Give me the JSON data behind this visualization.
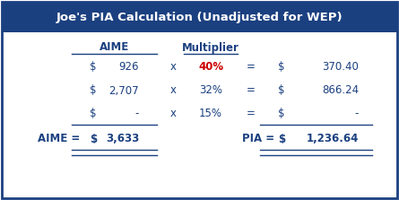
{
  "title": "Joe's PIA Calculation (Unadjusted for WEP)",
  "title_bg": "#1b4080",
  "title_color": "#ffffff",
  "border_color": "#1b4080",
  "bg_color": "#ffffff",
  "header_aime": "AIME",
  "header_multiplier": "Multiplier",
  "rows": [
    {
      "aime_dollar": "$",
      "aime_val": "926",
      "x_sym": "x",
      "multiplier": "40%",
      "mult_color": "#cc0000",
      "eq": "=",
      "res_dollar": "$",
      "res_val": "370.40"
    },
    {
      "aime_dollar": "$",
      "aime_val": "2,707",
      "x_sym": "x",
      "multiplier": "32%",
      "mult_color": "#1b4080",
      "eq": "=",
      "res_dollar": "$",
      "res_val": "866.24"
    },
    {
      "aime_dollar": "$",
      "aime_val": "-",
      "x_sym": "x",
      "multiplier": "15%",
      "mult_color": "#1b4080",
      "eq": "=",
      "res_dollar": "$",
      "res_val": "-"
    }
  ],
  "total_label": "AIME =",
  "total_aime_dollar": "$",
  "total_aime_val": "3,633",
  "pia_label": "PIA =",
  "pia_dollar": "$",
  "pia_val": "1,236.64",
  "text_color": "#1b4080",
  "font_size": 8.5,
  "title_font_size": 9.5
}
